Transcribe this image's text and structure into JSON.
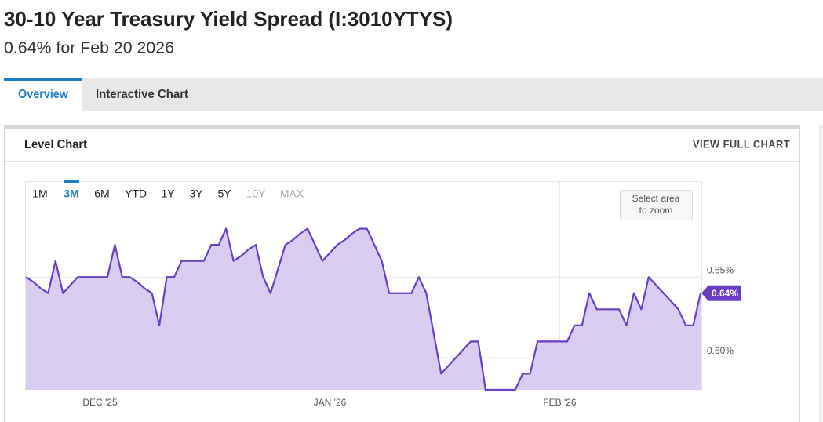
{
  "header": {
    "title": "30-10 Year Treasury Yield Spread (I:3010YTYS)",
    "subtitle": "0.64% for Feb 20 2026"
  },
  "tabs": [
    "Overview",
    "Interactive Chart"
  ],
  "panel": {
    "title": "Level Chart",
    "link": "VIEW FULL CHART"
  },
  "range_buttons": [
    "1M",
    "3M",
    "6M",
    "YTD",
    "1Y",
    "3Y",
    "5Y",
    "10Y",
    "MAX"
  ],
  "zoom_hint": [
    "Select area",
    "to zoom"
  ],
  "chart_data": {
    "type": "line",
    "categories": [
      null,
      null,
      null,
      null,
      null,
      null,
      null,
      null,
      null,
      null,
      "DEC '25",
      null,
      null,
      null,
      null,
      null,
      null,
      null,
      null,
      null,
      null,
      null,
      null,
      null,
      null,
      null,
      null,
      null,
      null,
      null,
      null,
      null,
      null,
      null,
      null,
      null,
      null,
      null,
      null,
      null,
      null,
      "JAN '26",
      null,
      null,
      null,
      null,
      null,
      null,
      null,
      null,
      null,
      null,
      null,
      null,
      null,
      null,
      null,
      null,
      null,
      null,
      null,
      null,
      null,
      null,
      null,
      null,
      null,
      null,
      null,
      null,
      null,
      null,
      "FEB '26",
      null,
      null,
      null,
      null,
      null,
      null,
      null,
      null,
      null,
      null,
      null,
      null,
      null,
      null,
      null,
      null,
      null,
      null,
      null
    ],
    "values": [
      0.65,
      0.647,
      0.643,
      0.64,
      0.66,
      0.64,
      0.645,
      0.65,
      0.65,
      0.65,
      0.65,
      0.65,
      0.67,
      0.65,
      0.65,
      0.647,
      0.643,
      0.64,
      0.62,
      0.65,
      0.65,
      0.66,
      0.66,
      0.66,
      0.66,
      0.67,
      0.67,
      0.68,
      0.66,
      0.663,
      0.667,
      0.67,
      0.65,
      0.64,
      0.655,
      0.67,
      0.673,
      0.677,
      0.68,
      0.67,
      0.66,
      0.665,
      0.67,
      0.673,
      0.677,
      0.68,
      0.68,
      0.67,
      0.66,
      0.64,
      0.64,
      0.64,
      0.64,
      0.65,
      0.64,
      0.615,
      0.59,
      0.595,
      0.6,
      0.605,
      0.61,
      0.61,
      0.58,
      0.58,
      0.58,
      0.58,
      0.58,
      0.59,
      0.59,
      0.61,
      0.61,
      0.61,
      0.61,
      0.61,
      0.62,
      0.62,
      0.64,
      0.63,
      0.63,
      0.63,
      0.63,
      0.62,
      0.64,
      0.63,
      0.65,
      0.645,
      0.64,
      0.635,
      0.63,
      0.62,
      0.62,
      0.64
    ],
    "value_labels": [
      null,
      null,
      null,
      null,
      null,
      null,
      null,
      null,
      null,
      null,
      null,
      null,
      null,
      null,
      null,
      null,
      null,
      null,
      null,
      null,
      null,
      null,
      null,
      null,
      null,
      null,
      null,
      null,
      null,
      null,
      null,
      null,
      null,
      null,
      null,
      null,
      null,
      null,
      null,
      null,
      null,
      null,
      null,
      null,
      null,
      null,
      null,
      null,
      null,
      null,
      null,
      null,
      null,
      null,
      null,
      null,
      null,
      null,
      null,
      null,
      null,
      null,
      null,
      null,
      null,
      null,
      null,
      null,
      null,
      null,
      null,
      null,
      null,
      null,
      null,
      null,
      null,
      null,
      null,
      null,
      null,
      null,
      null,
      null,
      null,
      null,
      null,
      null,
      null,
      null,
      null,
      "0.64%"
    ],
    "color": "#6a3dc4",
    "fill_color": "#d8ccf1",
    "ylim": [
      0.58,
      0.709
    ],
    "yticks": [
      {
        "value": 0.6,
        "label": "0.60%"
      },
      {
        "value": 0.65,
        "label": "0.65%"
      }
    ],
    "grid": true
  }
}
